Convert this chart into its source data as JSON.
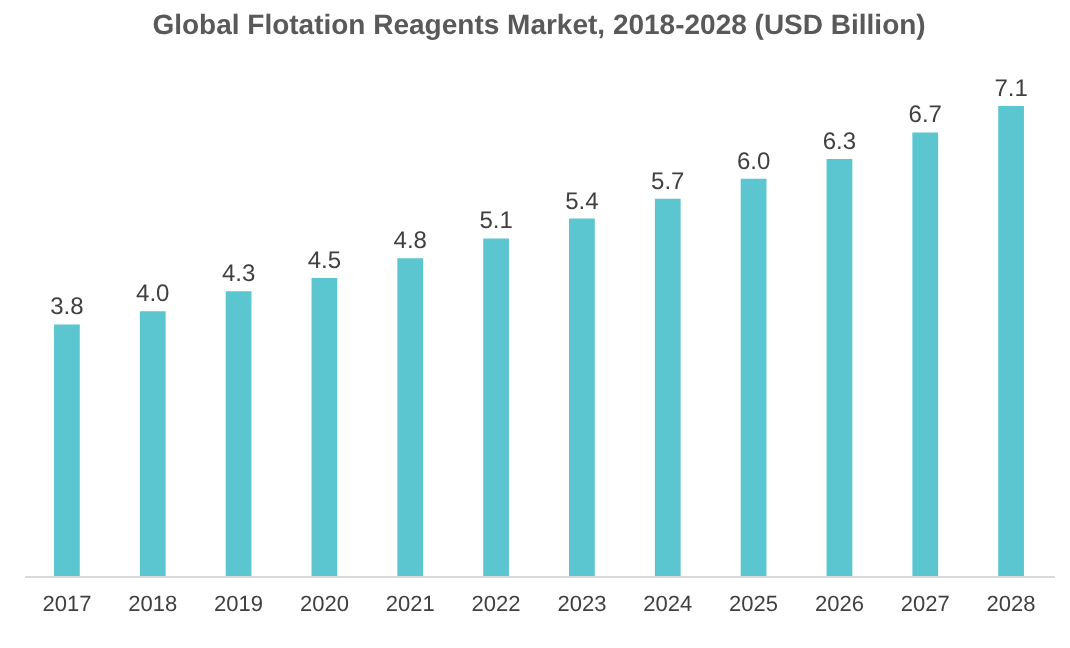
{
  "chart_data": {
    "type": "bar",
    "title": "Global Flotation Reagents Market, 2018-2028 (USD Billion)",
    "categories": [
      "2017",
      "2018",
      "2019",
      "2020",
      "2021",
      "2022",
      "2023",
      "2024",
      "2025",
      "2026",
      "2027",
      "2028"
    ],
    "values": [
      3.8,
      4.0,
      4.3,
      4.5,
      4.8,
      5.1,
      5.4,
      5.7,
      6.0,
      6.3,
      6.7,
      7.1
    ],
    "value_labels": [
      "3.8",
      "4.0",
      "4.3",
      "4.5",
      "4.8",
      "5.1",
      "5.4",
      "5.7",
      "6.0",
      "6.3",
      "6.7",
      "7.1"
    ],
    "color": "#5bc5d0"
  }
}
